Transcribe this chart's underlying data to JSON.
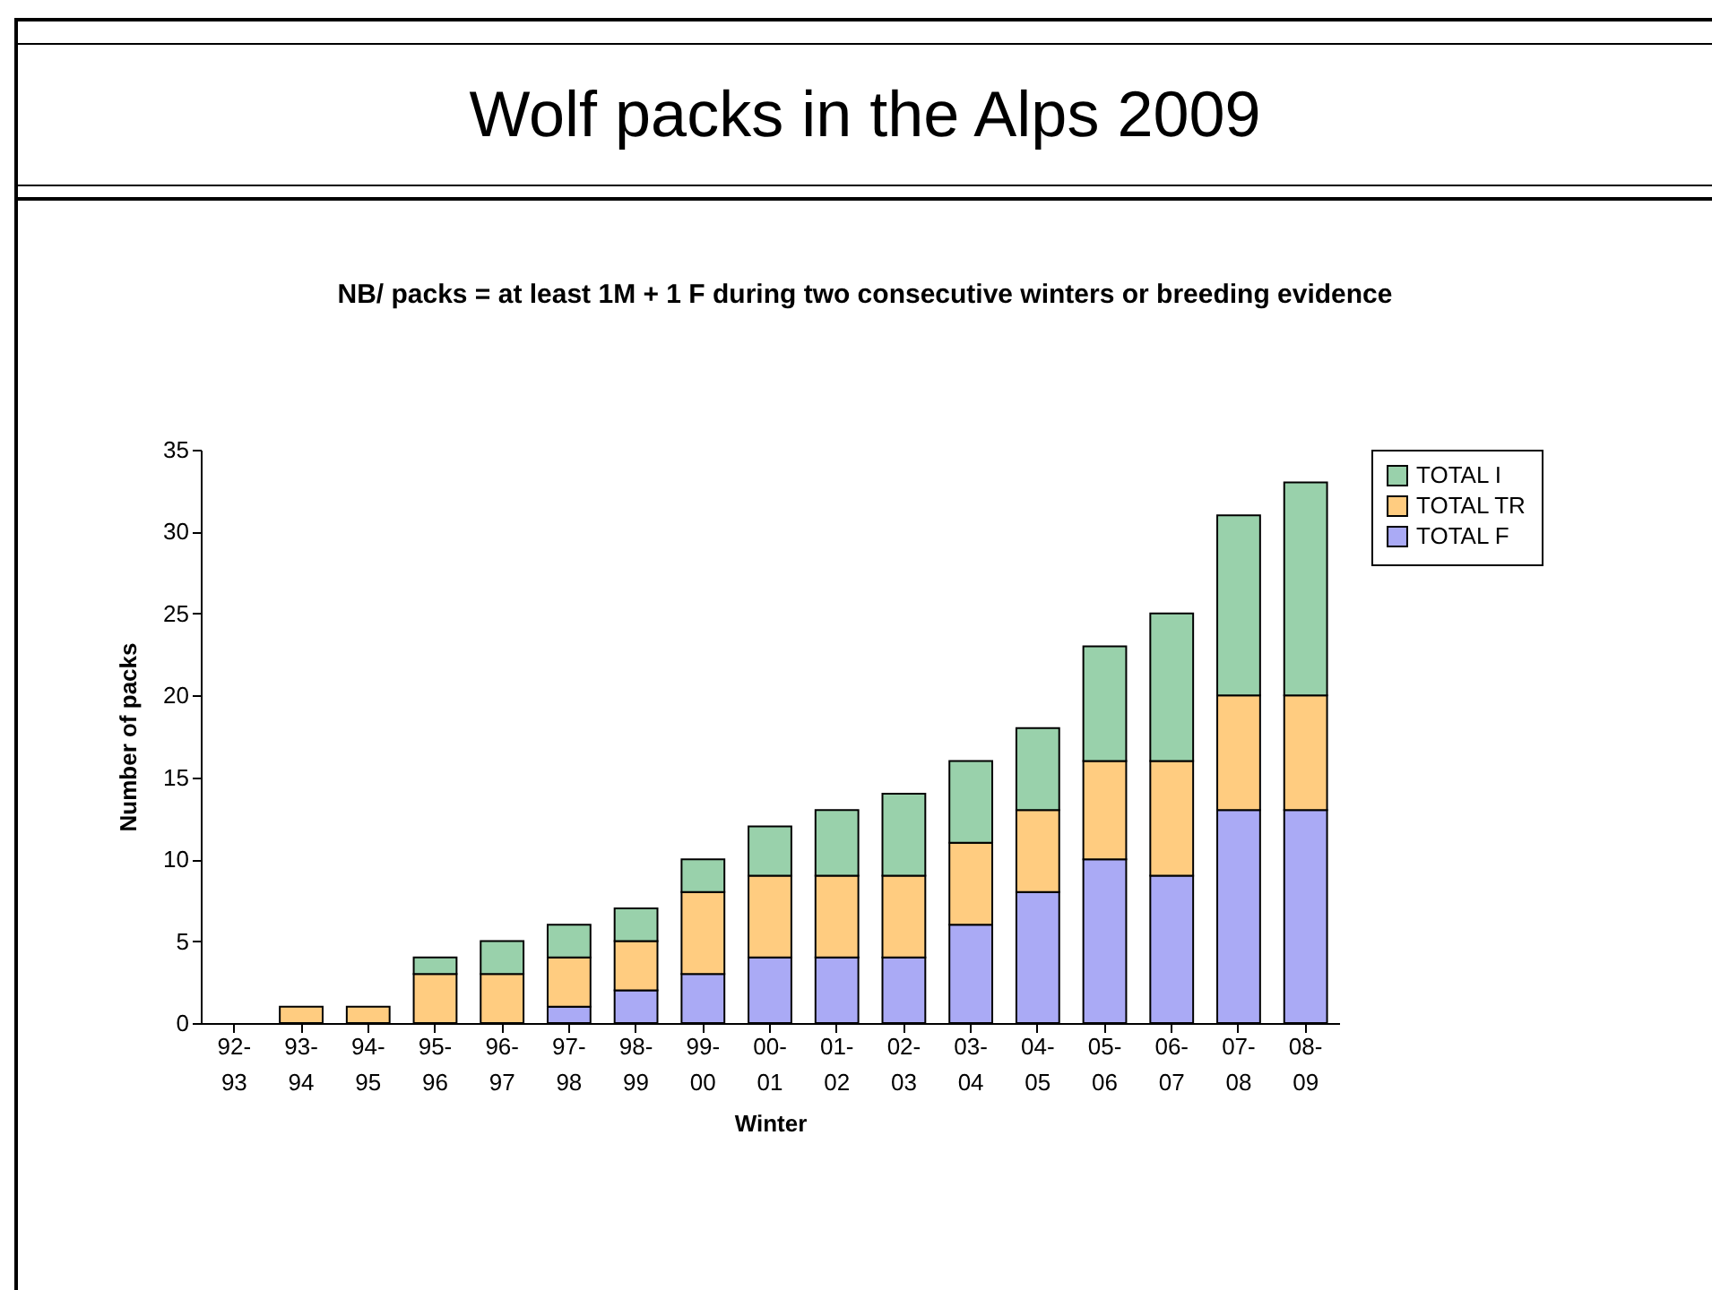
{
  "chart_data": {
    "type": "bar",
    "title": "Wolf packs in the Alps 2009",
    "subtitle": "NB/ packs = at least 1M + 1 F during two consecutive winters or breeding evidence",
    "xlabel": "Winter",
    "ylabel": "Number of  packs",
    "categories": [
      "92-93",
      "93-94",
      "94-95",
      "95-96",
      "96-97",
      "97-98",
      "98-99",
      "99-00",
      "00-01",
      "01-02",
      "02-03",
      "03-04",
      "04-05",
      "05-06",
      "06-07",
      "07-08",
      "08-09"
    ],
    "stacked": true,
    "series": [
      {
        "name": "TOTAL F",
        "color": "#aaaaf5",
        "values": [
          null,
          null,
          null,
          null,
          null,
          1,
          2,
          3,
          4,
          4,
          4,
          6,
          8,
          10,
          9,
          13,
          13
        ]
      },
      {
        "name": "TOTAL TR",
        "color": "#ffcc80",
        "values": [
          null,
          1,
          1,
          3,
          3,
          3,
          3,
          5,
          5,
          5,
          5,
          5,
          5,
          6,
          7,
          7,
          7
        ]
      },
      {
        "name": "TOTAL I",
        "color": "#99d1ab",
        "values": [
          null,
          null,
          null,
          1,
          2,
          2,
          2,
          2,
          3,
          4,
          5,
          5,
          5,
          7,
          9,
          11,
          13
        ]
      }
    ],
    "ylim": [
      0,
      35
    ],
    "yticks": [
      0,
      5,
      10,
      15,
      20,
      25,
      30,
      35
    ],
    "grid": false,
    "legend": "right"
  }
}
